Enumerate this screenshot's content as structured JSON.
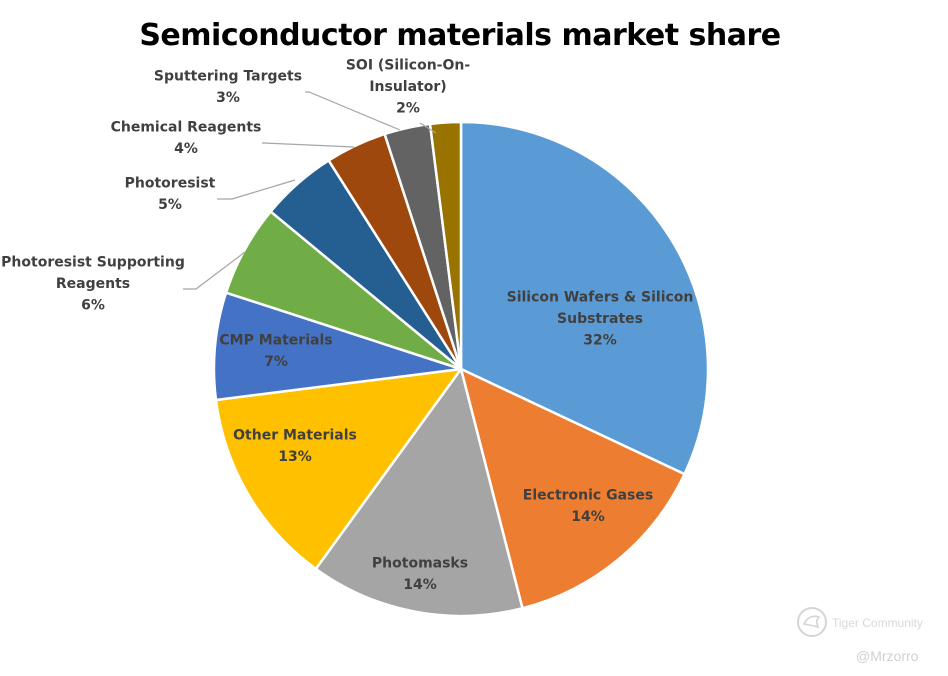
{
  "chart_data": {
    "type": "pie",
    "title": "Semiconductor materials market share",
    "slices": [
      {
        "label": [
          "Silicon Wafers & Silicon",
          "Substrates"
        ],
        "value": 32,
        "value_label": "32%",
        "color": "#5b9bd5"
      },
      {
        "label": [
          "Electronic Gases"
        ],
        "value": 14,
        "value_label": "14%",
        "color": "#ed7d31"
      },
      {
        "label": [
          "Photomasks"
        ],
        "value": 14,
        "value_label": "14%",
        "color": "#a5a5a5"
      },
      {
        "label": [
          "Other Materials"
        ],
        "value": 13,
        "value_label": "13%",
        "color": "#ffc000"
      },
      {
        "label": [
          "CMP Materials"
        ],
        "value": 7,
        "value_label": "7%",
        "color": "#4472c4"
      },
      {
        "label": [
          "Photoresist Supporting",
          "Reagents"
        ],
        "value": 6,
        "value_label": "6%",
        "color": "#70ad47"
      },
      {
        "label": [
          "Photoresist"
        ],
        "value": 5,
        "value_label": "5%",
        "color": "#255e91"
      },
      {
        "label": [
          "Chemical Reagents"
        ],
        "value": 4,
        "value_label": "4%",
        "color": "#9e480e"
      },
      {
        "label": [
          "Sputtering Targets"
        ],
        "value": 3,
        "value_label": "3%",
        "color": "#636363"
      },
      {
        "label": [
          "SOI (Silicon-On-",
          "Insulator)"
        ],
        "value": 2,
        "value_label": "2%",
        "color": "#997300"
      }
    ],
    "legend": "none"
  },
  "watermark": {
    "brand": "Tiger Community",
    "handle": "@Mrzorro"
  }
}
